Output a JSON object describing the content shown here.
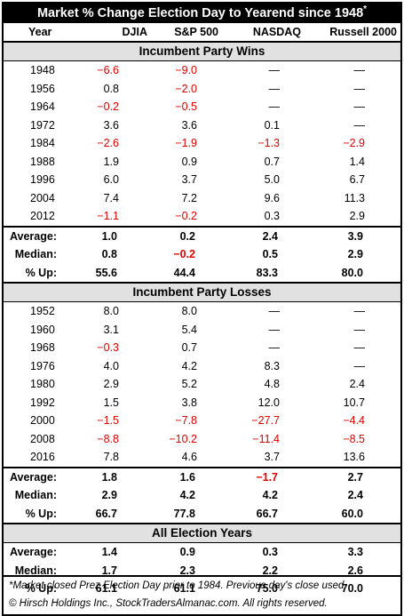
{
  "title": "Market % Change Election Day to Yearend since 1948",
  "title_mark": "*",
  "columns": [
    "Year",
    "DJIA",
    "S&P 500",
    "NASDAQ",
    "Russell 2000"
  ],
  "sections": [
    {
      "heading": "Incumbent Party Wins",
      "rows": [
        [
          "1948",
          "−6.6",
          "−9.0",
          "—",
          "—"
        ],
        [
          "1956",
          "0.8",
          "−2.0",
          "—",
          "—"
        ],
        [
          "1964",
          "−0.2",
          "−0.5",
          "—",
          "—"
        ],
        [
          "1972",
          "3.6",
          "3.6",
          "0.1",
          "—"
        ],
        [
          "1984",
          "−2.6",
          "−1.9",
          "−1.3",
          "−2.9"
        ],
        [
          "1988",
          "1.9",
          "0.9",
          "0.7",
          "1.4"
        ],
        [
          "1996",
          "6.0",
          "3.7",
          "5.0",
          "6.7"
        ],
        [
          "2004",
          "7.4",
          "7.2",
          "9.6",
          "11.3"
        ],
        [
          "2012",
          "−1.1",
          "−0.2",
          "0.3",
          "2.9"
        ]
      ],
      "stats": [
        [
          "Average:",
          "1.0",
          "0.2",
          "2.4",
          "3.9"
        ],
        [
          "Median:",
          "0.8",
          "−0.2",
          "0.5",
          "2.9"
        ],
        [
          "% Up:",
          "55.6",
          "44.4",
          "83.3",
          "80.0"
        ]
      ]
    },
    {
      "heading": "Incumbent Party Losses",
      "rows": [
        [
          "1952",
          "8.0",
          "8.0",
          "—",
          "—"
        ],
        [
          "1960",
          "3.1",
          "5.4",
          "—",
          "—"
        ],
        [
          "1968",
          "−0.3",
          "0.7",
          "—",
          "—"
        ],
        [
          "1976",
          "4.0",
          "4.2",
          "8.3",
          "—"
        ],
        [
          "1980",
          "2.9",
          "5.2",
          "4.8",
          "2.4"
        ],
        [
          "1992",
          "1.5",
          "3.8",
          "12.0",
          "10.7"
        ],
        [
          "2000",
          "−1.5",
          "−7.8",
          "−27.7",
          "−4.4"
        ],
        [
          "2008",
          "−8.8",
          "−10.2",
          "−11.4",
          "−8.5"
        ],
        [
          "2016",
          "7.8",
          "4.6",
          "3.7",
          "13.6"
        ]
      ],
      "stats": [
        [
          "Average:",
          "1.8",
          "1.6",
          "−1.7",
          "2.7"
        ],
        [
          "Median:",
          "2.9",
          "4.2",
          "4.2",
          "2.4"
        ],
        [
          "% Up:",
          "66.7",
          "77.8",
          "66.7",
          "60.0"
        ]
      ]
    },
    {
      "heading": "All Election Years",
      "rows": [],
      "stats": [
        [
          "Average:",
          "1.4",
          "0.9",
          "0.3",
          "3.3"
        ],
        [
          "Median:",
          "1.7",
          "2.3",
          "2.2",
          "2.6"
        ],
        [
          "% Up:",
          "61.1",
          "61.1",
          "75.0",
          "70.0"
        ]
      ]
    }
  ],
  "footnote": "*Market closed Prez Election Day prior to 1984. Previous day's close used.",
  "copyright": "© Hirsch Holdings Inc., StockTradersAlmanac.com. All rights reserved.",
  "colors": {
    "negative": "#e00000",
    "section_bg": "#e1e1e1",
    "title_bg": "#000000"
  }
}
